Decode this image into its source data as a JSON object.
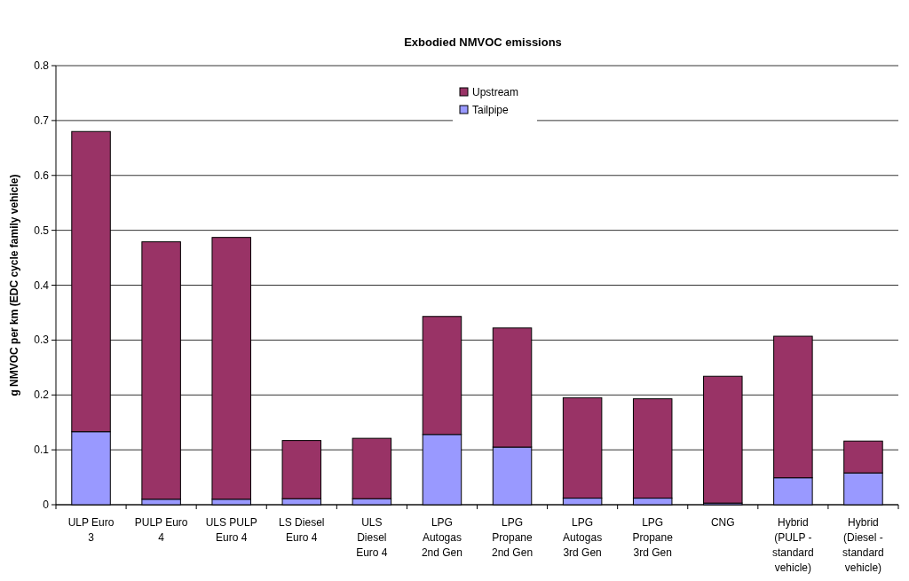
{
  "chart_data": {
    "type": "bar",
    "title": "Exbodied NMVOC emissions",
    "ylabel": "g NMVOC per km (EDC cycle family vehicle)",
    "categories": [
      "ULP Euro 3",
      "PULP Euro 4",
      "ULS PULP Euro 4",
      "LS Diesel Euro 4",
      "ULS Diesel Euro 4",
      "LPG Autogas 2nd Gen",
      "LPG Propane 2nd Gen",
      "LPG Autogas 3rd Gen",
      "LPG Propane 3rd Gen",
      "CNG",
      "Hybrid (PULP - standard vehicle)",
      "Hybrid (Diesel - standard vehicle)"
    ],
    "series": [
      {
        "name": "Tailpipe",
        "color": "#9999ff",
        "values": [
          0.133,
          0.01,
          0.01,
          0.011,
          0.011,
          0.128,
          0.105,
          0.012,
          0.012,
          0.003,
          0.049,
          0.058
        ]
      },
      {
        "name": "Upstream",
        "color": "#993366",
        "values": [
          0.547,
          0.469,
          0.477,
          0.106,
          0.11,
          0.215,
          0.217,
          0.183,
          0.181,
          0.231,
          0.258,
          0.058
        ]
      }
    ],
    "stacked": true,
    "ylim": [
      0,
      0.8
    ],
    "yticks": [
      0,
      0.1,
      0.2,
      0.3,
      0.4,
      0.5,
      0.6,
      0.7,
      0.8
    ],
    "grid": "y",
    "legend": "top"
  }
}
